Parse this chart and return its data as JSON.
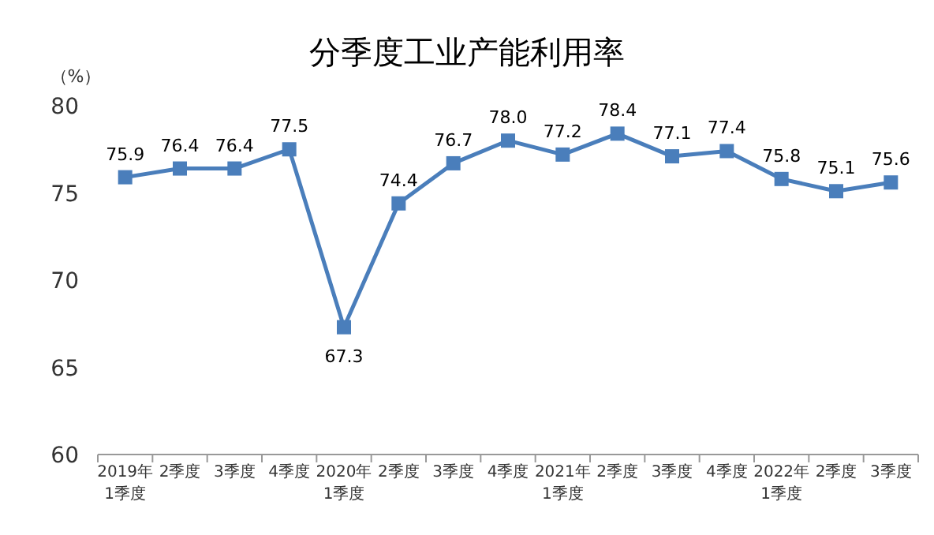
{
  "chart_data": {
    "type": "line",
    "title": "分季度工业产能利用率",
    "ylabel": "（%）",
    "categories": [
      "2019年\n1季度",
      "2季度",
      "3季度",
      "4季度",
      "2020年\n1季度",
      "2季度",
      "3季度",
      "4季度",
      "2021年\n1季度",
      "2季度",
      "3季度",
      "4季度",
      "2022年\n1季度",
      "2季度",
      "3季度"
    ],
    "values": [
      75.9,
      76.4,
      76.4,
      77.5,
      67.3,
      74.4,
      76.7,
      78.0,
      77.2,
      78.4,
      77.1,
      77.4,
      75.8,
      75.1,
      75.6
    ],
    "value_labels": [
      "75.9",
      "76.4",
      "76.4",
      "77.5",
      "67.3",
      "74.4",
      "76.7",
      "78.0",
      "77.2",
      "78.4",
      "77.1",
      "77.4",
      "75.8",
      "75.1",
      "75.6"
    ],
    "color": "#4a7ebb",
    "marker": "square",
    "ylim": [
      60,
      80
    ],
    "yticks": [
      60,
      65,
      70,
      75,
      80
    ],
    "grid": false
  }
}
